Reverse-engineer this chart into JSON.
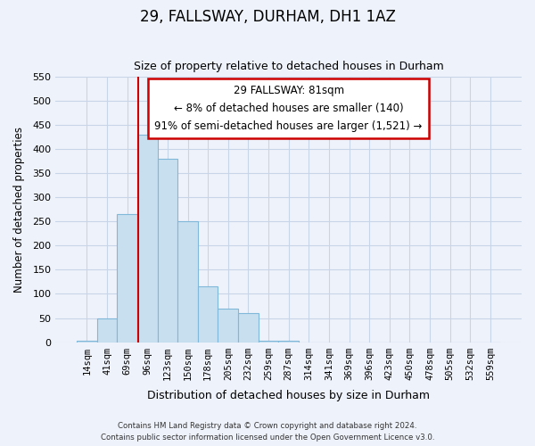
{
  "title": "29, FALLSWAY, DURHAM, DH1 1AZ",
  "subtitle": "Size of property relative to detached houses in Durham",
  "xlabel": "Distribution of detached houses by size in Durham",
  "ylabel": "Number of detached properties",
  "bar_labels": [
    "14sqm",
    "41sqm",
    "69sqm",
    "96sqm",
    "123sqm",
    "150sqm",
    "178sqm",
    "205sqm",
    "232sqm",
    "259sqm",
    "287sqm",
    "314sqm",
    "341sqm",
    "369sqm",
    "396sqm",
    "423sqm",
    "450sqm",
    "478sqm",
    "505sqm",
    "532sqm",
    "559sqm"
  ],
  "bar_values": [
    2,
    50,
    265,
    430,
    380,
    250,
    115,
    70,
    60,
    2,
    2,
    0,
    0,
    0,
    0,
    0,
    0,
    0,
    0,
    0,
    0
  ],
  "bar_color": "#c8dff0",
  "bar_edge_color": "#7fb8d8",
  "vline_x": 2.53,
  "vline_color": "#cc0000",
  "annotation_title": "29 FALLSWAY: 81sqm",
  "annotation_line1": "← 8% of detached houses are smaller (140)",
  "annotation_line2": "91% of semi-detached houses are larger (1,521) →",
  "annotation_box_color": "#ffffff",
  "annotation_box_edge": "#cc0000",
  "ylim": [
    0,
    550
  ],
  "yticks": [
    0,
    50,
    100,
    150,
    200,
    250,
    300,
    350,
    400,
    450,
    500,
    550
  ],
  "footnote1": "Contains HM Land Registry data © Crown copyright and database right 2024.",
  "footnote2": "Contains public sector information licensed under the Open Government Licence v3.0.",
  "grid_color": "#c8d4e8",
  "background_color": "#eef2fa"
}
